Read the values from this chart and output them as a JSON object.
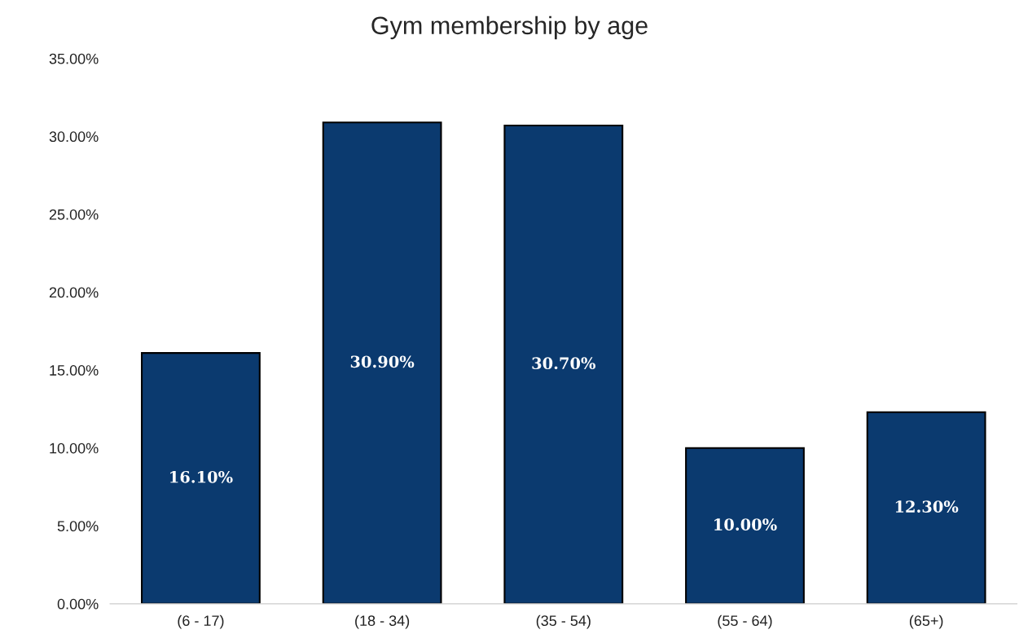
{
  "chart_data": {
    "type": "bar",
    "title": "Gym membership by age",
    "categories": [
      "(6 - 17)",
      "(18 - 34)",
      "(35 - 54)",
      "(55 - 64)",
      "(65+)"
    ],
    "values": [
      16.1,
      30.9,
      30.7,
      10.0,
      12.3
    ],
    "value_labels": [
      "16.10%",
      "30.90%",
      "30.70%",
      "10.00%",
      "12.30%"
    ],
    "color": "#0b3a6f",
    "ylim": [
      0,
      35
    ],
    "yticks": [
      {
        "value": 0,
        "label": "0.00%"
      },
      {
        "value": 5,
        "label": "5.00%"
      },
      {
        "value": 10,
        "label": "10.00%"
      },
      {
        "value": 15,
        "label": "15.00%"
      },
      {
        "value": 20,
        "label": "20.00%"
      },
      {
        "value": 25,
        "label": "25.00%"
      },
      {
        "value": 30,
        "label": "30.00%"
      },
      {
        "value": 35,
        "label": "35.00%"
      }
    ],
    "grid": false,
    "legend": false
  }
}
